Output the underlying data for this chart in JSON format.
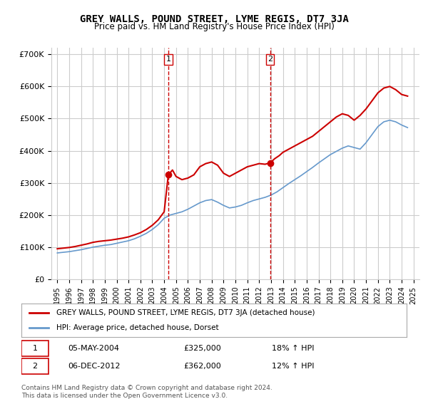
{
  "title": "GREY WALLS, POUND STREET, LYME REGIS, DT7 3JA",
  "subtitle": "Price paid vs. HM Land Registry's House Price Index (HPI)",
  "red_label": "GREY WALLS, POUND STREET, LYME REGIS, DT7 3JA (detached house)",
  "blue_label": "HPI: Average price, detached house, Dorset",
  "annotation1": {
    "num": "1",
    "date": "05-MAY-2004",
    "price": "£325,000",
    "hpi": "18% ↑ HPI",
    "x_year": 2004.35
  },
  "annotation2": {
    "num": "2",
    "date": "06-DEC-2012",
    "price": "£362,000",
    "hpi": "12% ↑ HPI",
    "x_year": 2012.92
  },
  "footer": "Contains HM Land Registry data © Crown copyright and database right 2024.\nThis data is licensed under the Open Government Licence v3.0.",
  "ylim": [
    0,
    720000
  ],
  "yticks": [
    0,
    100000,
    200000,
    300000,
    400000,
    500000,
    600000,
    700000
  ],
  "ytick_labels": [
    "£0",
    "£100K",
    "£200K",
    "£300K",
    "£400K",
    "£500K",
    "£600K",
    "£700K"
  ],
  "xlim": [
    1994.5,
    2025.5
  ],
  "xtick_years": [
    1995,
    1996,
    1997,
    1998,
    1999,
    2000,
    2001,
    2002,
    2003,
    2004,
    2005,
    2006,
    2007,
    2008,
    2009,
    2010,
    2011,
    2012,
    2013,
    2014,
    2015,
    2016,
    2017,
    2018,
    2019,
    2020,
    2021,
    2022,
    2023,
    2024,
    2025
  ],
  "vline1_x": 2004.35,
  "vline2_x": 2012.92,
  "background_color": "#ffffff",
  "grid_color": "#cccccc",
  "red_color": "#cc0000",
  "blue_color": "#6699cc",
  "vline_color": "#cc0000",
  "red_years": [
    1995.0,
    1995.5,
    1996.0,
    1996.5,
    1997.0,
    1997.5,
    1998.0,
    1998.5,
    1999.0,
    1999.5,
    2000.0,
    2000.5,
    2001.0,
    2001.5,
    2002.0,
    2002.5,
    2003.0,
    2003.5,
    2004.0,
    2004.35,
    2004.7,
    2005.0,
    2005.5,
    2006.0,
    2006.5,
    2007.0,
    2007.5,
    2008.0,
    2008.5,
    2009.0,
    2009.5,
    2010.0,
    2010.5,
    2011.0,
    2011.5,
    2012.0,
    2012.5,
    2012.92,
    2013.3,
    2013.7,
    2014.0,
    2014.5,
    2015.0,
    2015.5,
    2016.0,
    2016.5,
    2017.0,
    2017.5,
    2018.0,
    2018.5,
    2019.0,
    2019.5,
    2020.0,
    2020.5,
    2021.0,
    2021.5,
    2022.0,
    2022.5,
    2023.0,
    2023.5,
    2024.0,
    2024.5
  ],
  "red_values": [
    95000,
    97000,
    99000,
    102000,
    106000,
    110000,
    115000,
    118000,
    120000,
    122000,
    125000,
    128000,
    132000,
    138000,
    145000,
    155000,
    168000,
    185000,
    210000,
    325000,
    340000,
    320000,
    310000,
    315000,
    325000,
    350000,
    360000,
    365000,
    355000,
    330000,
    320000,
    330000,
    340000,
    350000,
    355000,
    360000,
    358000,
    362000,
    375000,
    385000,
    395000,
    405000,
    415000,
    425000,
    435000,
    445000,
    460000,
    475000,
    490000,
    505000,
    515000,
    510000,
    495000,
    510000,
    530000,
    555000,
    580000,
    595000,
    600000,
    590000,
    575000,
    570000
  ],
  "blue_years": [
    1995.0,
    1995.5,
    1996.0,
    1996.5,
    1997.0,
    1997.5,
    1998.0,
    1998.5,
    1999.0,
    1999.5,
    2000.0,
    2000.5,
    2001.0,
    2001.5,
    2002.0,
    2002.5,
    2003.0,
    2003.5,
    2004.0,
    2004.5,
    2005.0,
    2005.5,
    2006.0,
    2006.5,
    2007.0,
    2007.5,
    2008.0,
    2008.5,
    2009.0,
    2009.5,
    2010.0,
    2010.5,
    2011.0,
    2011.5,
    2012.0,
    2012.5,
    2013.0,
    2013.5,
    2014.0,
    2014.5,
    2015.0,
    2015.5,
    2016.0,
    2016.5,
    2017.0,
    2017.5,
    2018.0,
    2018.5,
    2019.0,
    2019.5,
    2020.0,
    2020.5,
    2021.0,
    2021.5,
    2022.0,
    2022.5,
    2023.0,
    2023.5,
    2024.0,
    2024.5
  ],
  "blue_values": [
    82000,
    84000,
    86000,
    89000,
    92000,
    96000,
    100000,
    103000,
    106000,
    108000,
    112000,
    116000,
    120000,
    126000,
    134000,
    143000,
    155000,
    170000,
    190000,
    200000,
    205000,
    210000,
    218000,
    228000,
    238000,
    245000,
    248000,
    240000,
    230000,
    222000,
    225000,
    230000,
    238000,
    245000,
    250000,
    255000,
    262000,
    272000,
    285000,
    298000,
    310000,
    322000,
    335000,
    348000,
    362000,
    375000,
    388000,
    398000,
    408000,
    415000,
    410000,
    405000,
    425000,
    450000,
    475000,
    490000,
    495000,
    490000,
    480000,
    472000
  ]
}
